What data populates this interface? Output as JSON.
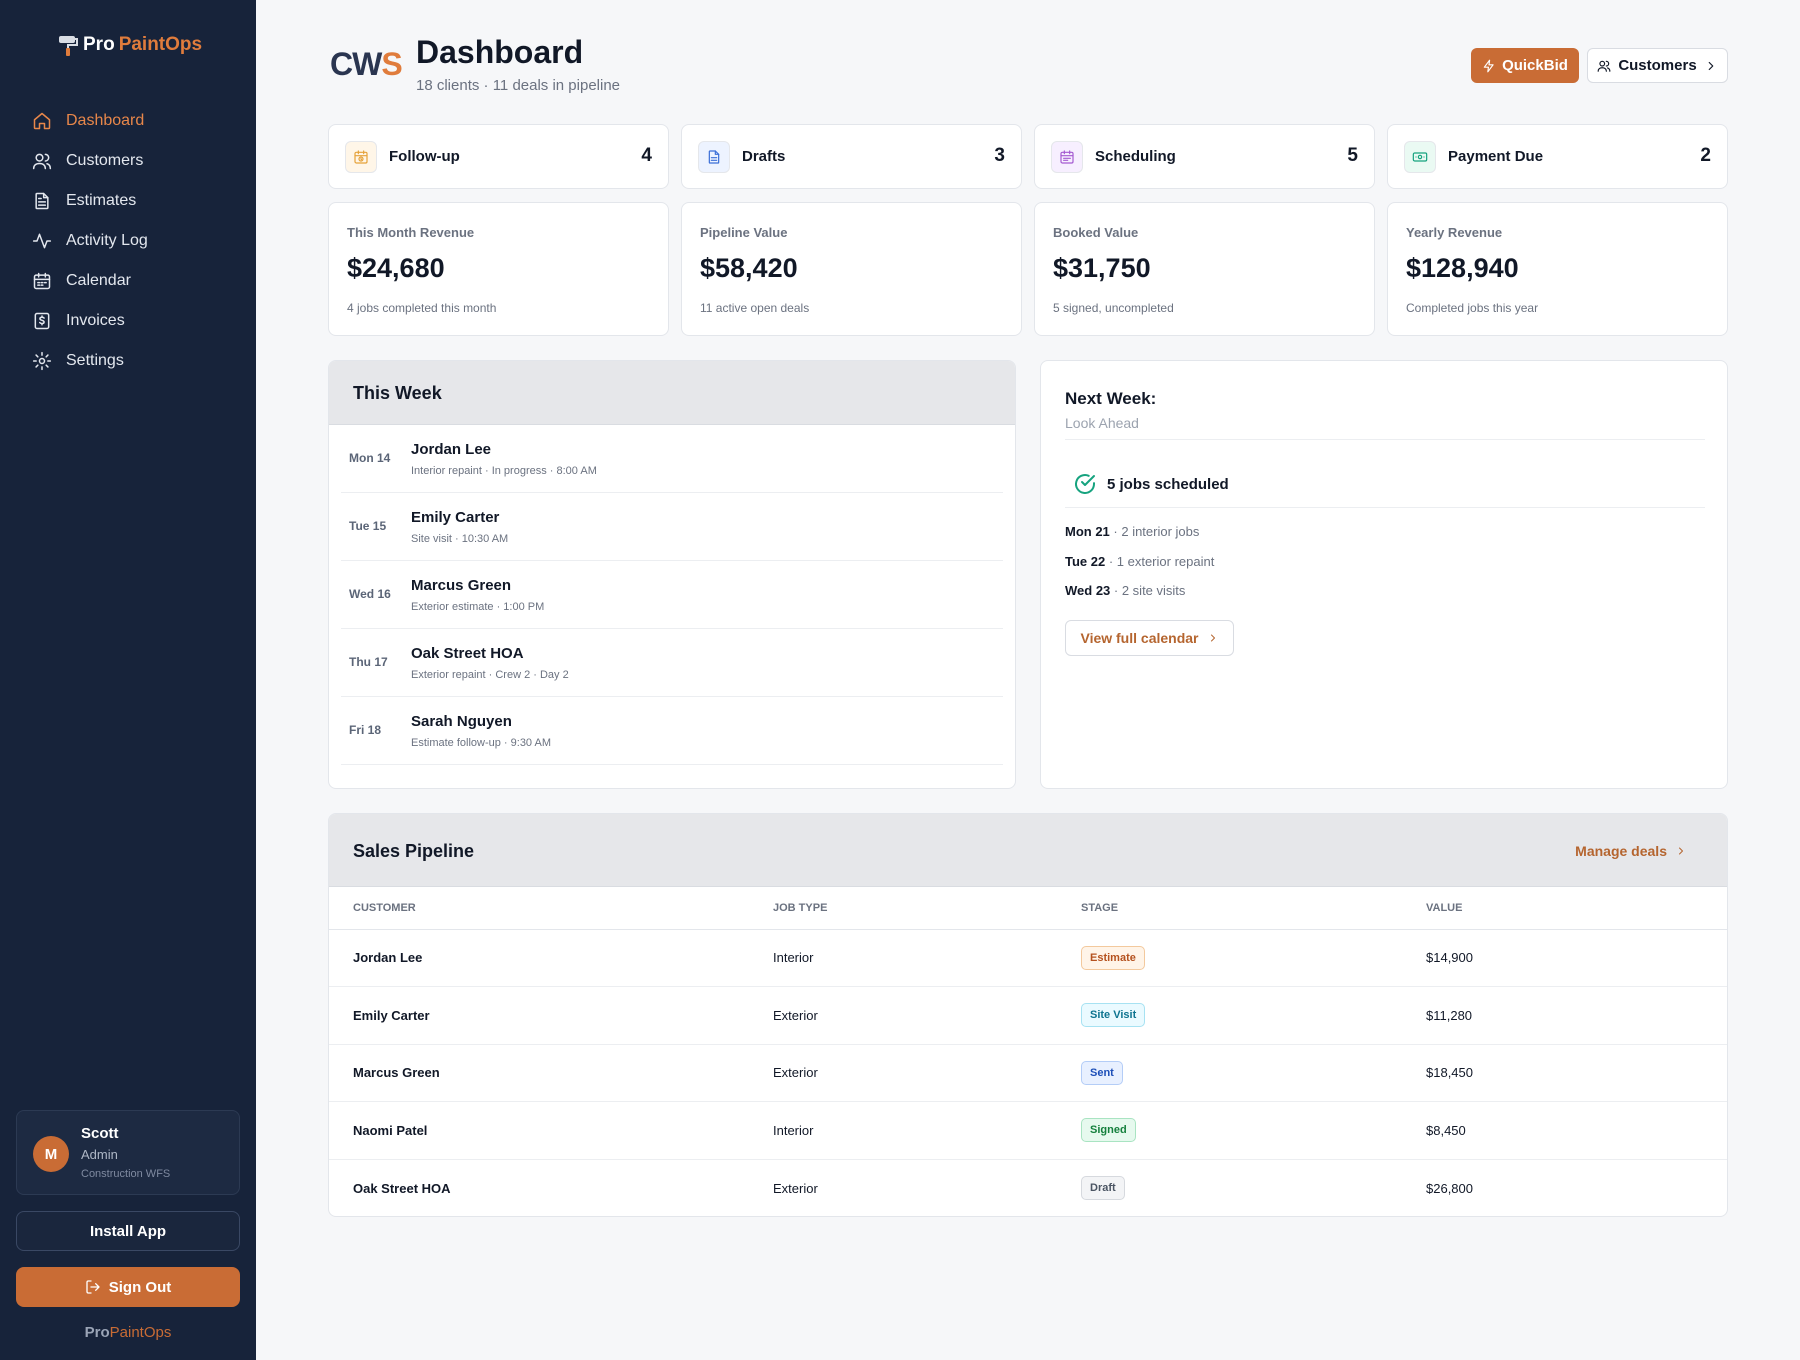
{
  "brand": {
    "pro": "Pro",
    "paint": "PaintOps"
  },
  "nav": [
    {
      "label": "Dashboard",
      "icon": "home-icon",
      "active": true
    },
    {
      "label": "Customers",
      "icon": "users-icon"
    },
    {
      "label": "Estimates",
      "icon": "document-icon"
    },
    {
      "label": "Activity Log",
      "icon": "activity-icon"
    },
    {
      "label": "Calendar",
      "icon": "calendar-icon"
    },
    {
      "label": "Invoices",
      "icon": "invoice-icon"
    },
    {
      "label": "Settings",
      "icon": "gear-icon"
    }
  ],
  "user": {
    "initial": "M",
    "name": "Scott",
    "role": "Admin",
    "org": "Construction WFS"
  },
  "sidebar_buttons": {
    "install": "Install App",
    "signout": "Sign Out"
  },
  "header": {
    "logo_left": "CW",
    "logo_right": "S",
    "title": "Dashboard",
    "subtitle": "18 clients · 11 deals in pipeline",
    "quickbid": "QuickBid",
    "customers": "Customers"
  },
  "status_cards": [
    {
      "label": "Follow-up",
      "count": "4",
      "icon": "calendar-clock-icon",
      "color": "#e5a23a"
    },
    {
      "label": "Drafts",
      "count": "3",
      "icon": "document-icon",
      "color": "#3b6fd8"
    },
    {
      "label": "Scheduling",
      "count": "5",
      "icon": "calendar-icon",
      "color": "#a55bd1"
    },
    {
      "label": "Payment Due",
      "count": "2",
      "icon": "cash-icon",
      "color": "#16a37f"
    }
  ],
  "metrics": [
    {
      "label": "This Month Revenue",
      "value": "$24,680",
      "note": "4 jobs completed this month"
    },
    {
      "label": "Pipeline Value",
      "value": "$58,420",
      "note": "11 active open deals"
    },
    {
      "label": "Booked Value",
      "value": "$31,750",
      "note": "5 signed, uncompleted"
    },
    {
      "label": "Yearly Revenue",
      "value": "$128,940",
      "note": "Completed jobs this year"
    }
  ],
  "this_week": {
    "title": "This Week",
    "rows": [
      {
        "day": "Mon 14",
        "name": "Jordan Lee",
        "detail": "Interior repaint · In progress · 8:00 AM"
      },
      {
        "day": "Tue 15",
        "name": "Emily Carter",
        "detail": "Site visit · 10:30 AM"
      },
      {
        "day": "Wed 16",
        "name": "Marcus Green",
        "detail": "Exterior estimate · 1:00 PM"
      },
      {
        "day": "Thu 17",
        "name": "Oak Street HOA",
        "detail": "Exterior repaint · Crew 2 · Day 2"
      },
      {
        "day": "Fri 18",
        "name": "Sarah Nguyen",
        "detail": "Estimate follow-up · 9:30 AM"
      }
    ]
  },
  "next_week": {
    "title": "Next Week:",
    "subtitle": "Look Ahead",
    "jobs": "5 jobs scheduled",
    "lines": [
      {
        "day": "Mon 21",
        "text": " · 2 interior jobs"
      },
      {
        "day": "Tue 22",
        "text": " · 1 exterior repaint"
      },
      {
        "day": "Wed 23",
        "text": " · 2 site visits"
      }
    ],
    "button": "View full calendar"
  },
  "pipeline": {
    "title": "Sales Pipeline",
    "manage": "Manage deals",
    "columns": [
      "CUSTOMER",
      "JOB TYPE",
      "STAGE",
      "VALUE"
    ],
    "rows": [
      {
        "customer": "Jordan Lee",
        "type": "Interior",
        "stage": "Estimate",
        "value": "$14,900",
        "bg": "#fff4e8",
        "border": "#f3c99d",
        "fg": "#b5521f"
      },
      {
        "customer": "Emily Carter",
        "type": "Exterior",
        "stage": "Site Visit",
        "value": "$11,280",
        "bg": "#eafaff",
        "border": "#a7e2f2",
        "fg": "#0e7490"
      },
      {
        "customer": "Marcus Green",
        "type": "Exterior",
        "stage": "Sent",
        "value": "$18,450",
        "bg": "#e8f0ff",
        "border": "#b4cdf7",
        "fg": "#1d4fb8"
      },
      {
        "customer": "Naomi Patel",
        "type": "Interior",
        "stage": "Signed",
        "value": "$8,450",
        "bg": "#e6f9ee",
        "border": "#a9e4c2",
        "fg": "#15803d"
      },
      {
        "customer": "Oak Street HOA",
        "type": "Exterior",
        "stage": "Draft",
        "value": "$26,800",
        "bg": "#f3f4f6",
        "border": "#d6d9de",
        "fg": "#4b5563"
      }
    ]
  },
  "footer": {
    "pro": "Pro",
    "paint": "PaintOps"
  }
}
